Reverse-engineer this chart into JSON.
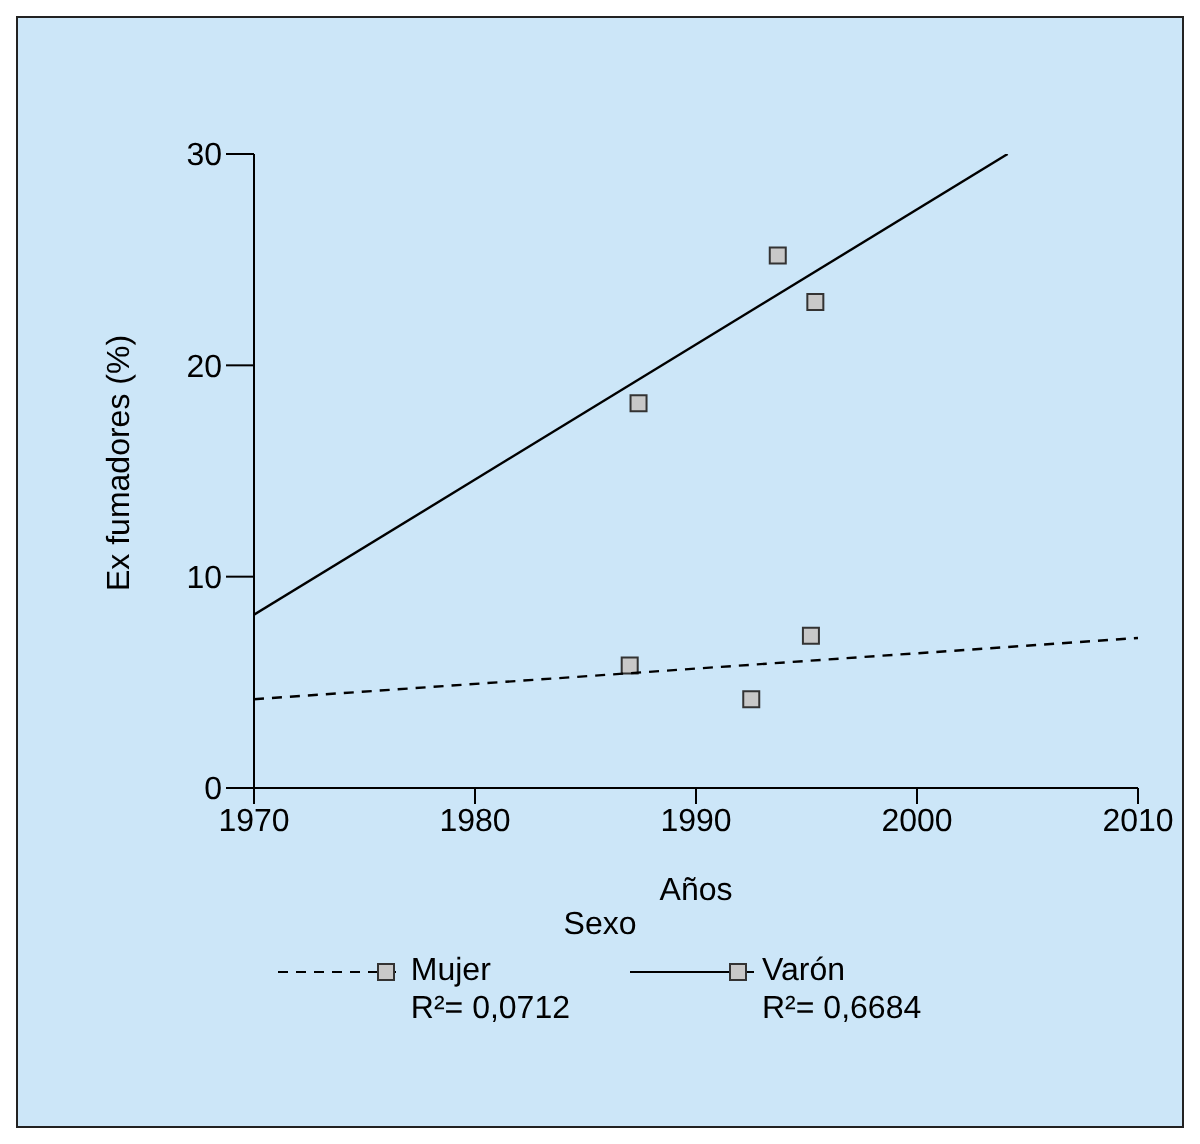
{
  "chart_data": {
    "type": "scatter",
    "xlabel": "Años",
    "ylabel": "Ex fumadores (%)",
    "legend_title": "Sexo",
    "legend": "bottom",
    "grid": false,
    "xlim": [
      1970,
      2010
    ],
    "xticks": [
      1970,
      1980,
      1990,
      2000,
      2010
    ],
    "ylim": [
      0,
      30
    ],
    "yticks": [
      0,
      10,
      20,
      30
    ],
    "series": [
      {
        "name": "Mujer",
        "color": "#c8c8c8",
        "marker": "square",
        "x": [
          1987.0,
          1992.5,
          1995.2
        ],
        "values": [
          5.8,
          4.2,
          7.2
        ]
      },
      {
        "type": "line",
        "color": "#000000",
        "line_style": "dashed",
        "marker": "none",
        "x": [
          1970,
          2010
        ],
        "values": [
          4.2,
          7.1
        ]
      },
      {
        "name": "Varón",
        "color": "#c8c8c8",
        "marker": "square",
        "x": [
          1987.4,
          1993.7,
          1995.4
        ],
        "values": [
          18.2,
          25.2,
          23.0
        ]
      },
      {
        "type": "line",
        "color": "#000000",
        "line_style": "solid",
        "marker": "none",
        "x": [
          1970,
          2004.1
        ],
        "values": [
          8.2,
          30.0
        ]
      }
    ],
    "annotations": [
      "R²= 0,0712",
      "R²= 0,6684"
    ]
  }
}
